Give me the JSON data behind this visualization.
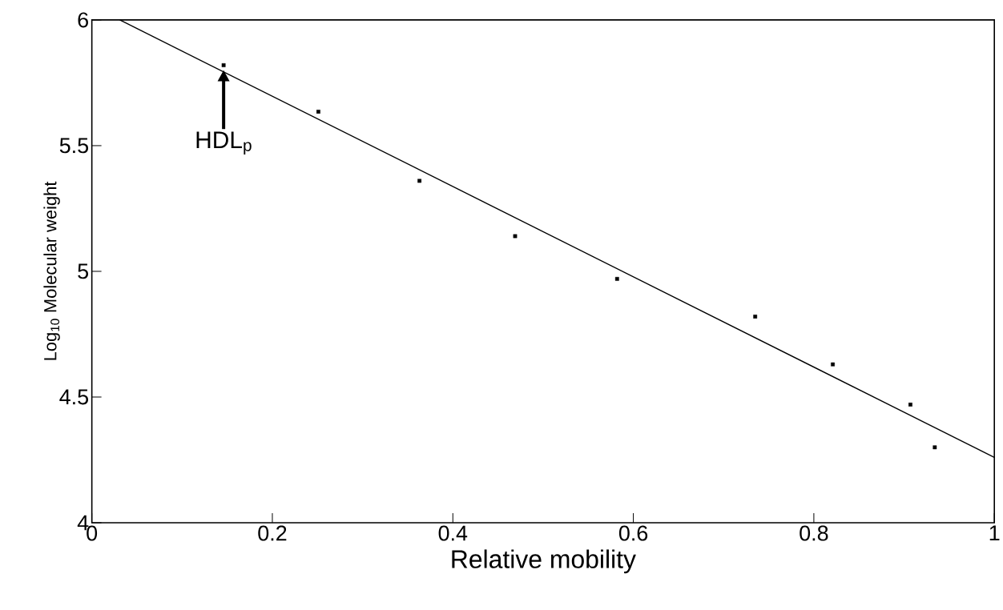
{
  "chart_data": {
    "type": "scatter",
    "xlabel": "Relative mobility",
    "ylabel": "Log$_{10}$ Molecular weight",
    "xlim": [
      0,
      1
    ],
    "ylim": [
      4,
      6
    ],
    "xticks": [
      0,
      0.2,
      0.4,
      0.6,
      0.8,
      1
    ],
    "yticks": [
      4,
      4.5,
      5,
      5.5,
      6
    ],
    "series": [
      {
        "color": "#000000",
        "marker": "square",
        "x": [
          0.146,
          0.251,
          0.363,
          0.469,
          0.582,
          0.735,
          0.821,
          0.907,
          0.934
        ],
        "values": [
          5.82,
          5.635,
          5.36,
          5.14,
          4.97,
          4.82,
          4.63,
          4.47,
          4.3
        ]
      },
      {
        "type": "line",
        "color": "#000000",
        "line_style": "solid",
        "x": [
          0.031,
          1
        ],
        "values": [
          6,
          4.26
        ]
      }
    ],
    "annotations": [
      {
        "text": "HDL$_{p}$",
        "x": 0.146,
        "y": 5.82
      }
    ],
    "grid": false
  }
}
